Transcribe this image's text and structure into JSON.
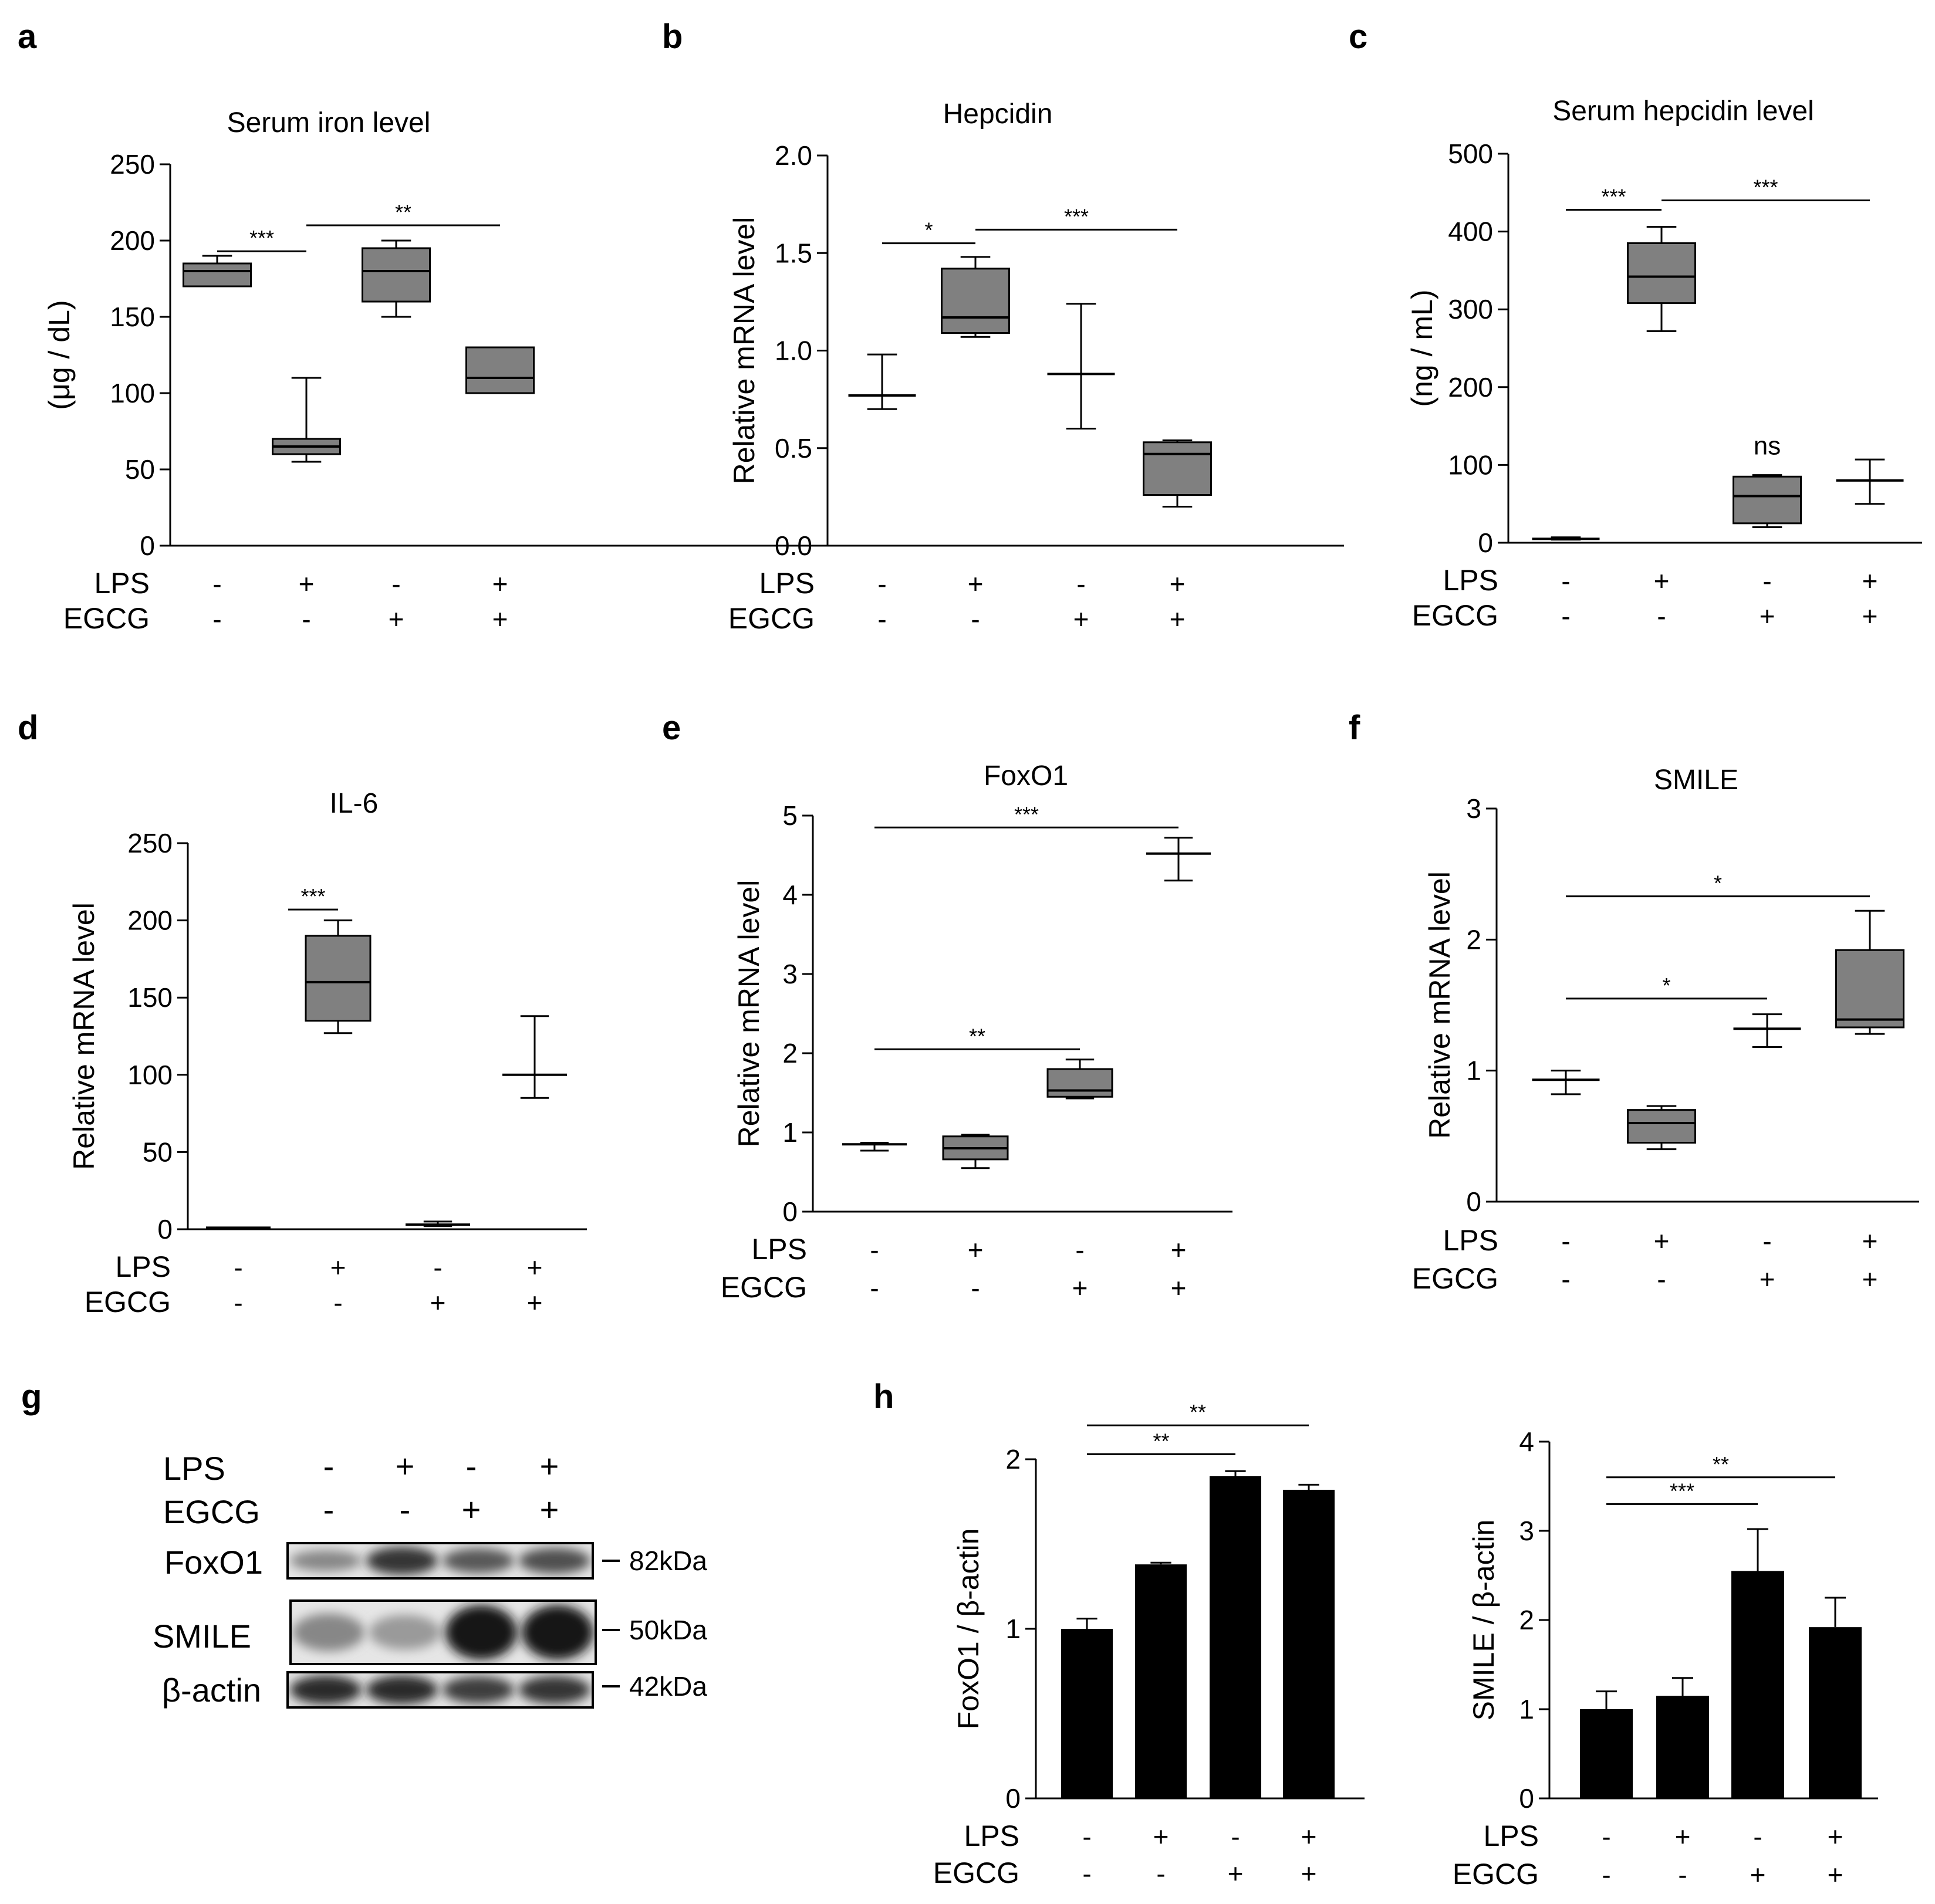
{
  "conditions": {
    "row_labels": [
      "LPS",
      "EGCG"
    ],
    "lps": [
      "-",
      "+",
      "-",
      "+"
    ],
    "egcg": [
      "-",
      "-",
      "+",
      "+"
    ]
  },
  "chart_data": [
    {
      "panel": "a",
      "type": "box",
      "title": "Serum iron level",
      "ylabel": "(μg / dL)",
      "ylim": [
        0,
        250
      ],
      "yticks": [
        0,
        50,
        100,
        150,
        200,
        250
      ],
      "box_color": "#808080",
      "groups": [
        {
          "min": 170,
          "q1": 170,
          "median": 180,
          "q3": 185,
          "max": 190
        },
        {
          "min": 55,
          "q1": 60,
          "median": 65,
          "q3": 70,
          "max": 110
        },
        {
          "min": 150,
          "q1": 160,
          "median": 180,
          "q3": 195,
          "max": 200
        },
        {
          "min": 100,
          "q1": 100,
          "median": 110,
          "q3": 130,
          "max": 130
        }
      ],
      "significance": [
        {
          "from": 0,
          "to": 1,
          "label": "***",
          "y": 193
        },
        {
          "from": 1,
          "to": 3,
          "label": "**",
          "y": 210
        }
      ]
    },
    {
      "panel": "b",
      "type": "box",
      "title": "Hepcidin",
      "ylabel": "Relative mRNA level",
      "ylim": [
        0,
        2.0
      ],
      "yticks": [
        "0.0",
        "0.5",
        "1.0",
        "1.5",
        "2.0"
      ],
      "box_color": "#808080",
      "groups": [
        {
          "min": 0.7,
          "median": 0.77,
          "max": 0.98
        },
        {
          "min": 1.07,
          "q1": 1.09,
          "median": 1.17,
          "q3": 1.42,
          "max": 1.48
        },
        {
          "min": 0.6,
          "median": 0.88,
          "max": 1.24
        },
        {
          "min": 0.2,
          "q1": 0.26,
          "median": 0.47,
          "q3": 0.53,
          "max": 0.54
        }
      ],
      "significance": [
        {
          "from": 0,
          "to": 1,
          "label": "*",
          "y": 1.55
        },
        {
          "from": 1,
          "to": 3,
          "label": "***",
          "y": 1.62
        }
      ]
    },
    {
      "panel": "c",
      "type": "box",
      "title": "Serum hepcidin level",
      "ylabel": "(ng / mL)",
      "ylim": [
        0,
        500
      ],
      "yticks": [
        0,
        100,
        200,
        300,
        400,
        500
      ],
      "box_color": "#808080",
      "groups": [
        {
          "min": 4,
          "median": 5,
          "max": 7
        },
        {
          "min": 272,
          "q1": 308,
          "median": 342,
          "q3": 385,
          "max": 406
        },
        {
          "min": 20,
          "q1": 25,
          "median": 60,
          "q3": 85,
          "max": 87
        },
        {
          "min": 50,
          "median": 80,
          "max": 107
        }
      ],
      "significance": [
        {
          "from": 0,
          "to": 1,
          "label": "***",
          "y": 428
        },
        {
          "from": 1,
          "to": 3,
          "label": "***",
          "y": 440
        }
      ],
      "annotations": [
        {
          "group": 2,
          "label": "ns",
          "y": 100
        }
      ]
    },
    {
      "panel": "d",
      "type": "box",
      "title": "IL-6",
      "ylabel": "Relative mRNA level",
      "ylim": [
        0,
        250
      ],
      "yticks": [
        0,
        50,
        100,
        150,
        200,
        250
      ],
      "box_color": "#808080",
      "groups": [
        {
          "min": 1,
          "median": 1,
          "max": 1
        },
        {
          "min": 127,
          "q1": 135,
          "median": 160,
          "q3": 190,
          "max": 200
        },
        {
          "min": 2,
          "median": 3,
          "max": 5
        },
        {
          "min": 85,
          "median": 100,
          "max": 138
        }
      ],
      "significance": [
        {
          "from": 0,
          "to": 1,
          "label": "***",
          "y": 207,
          "x0": 0.5
        }
      ]
    },
    {
      "panel": "e",
      "type": "box",
      "title": "FoxO1",
      "ylabel": "Relative mRNA level",
      "ylim": [
        0,
        5
      ],
      "yticks": [
        0,
        1,
        2,
        3,
        4,
        5
      ],
      "box_color": "#808080",
      "groups": [
        {
          "min": 0.77,
          "median": 0.85,
          "max": 0.87
        },
        {
          "min": 0.55,
          "q1": 0.66,
          "median": 0.8,
          "q3": 0.95,
          "max": 0.97
        },
        {
          "min": 1.43,
          "q1": 1.45,
          "median": 1.53,
          "q3": 1.8,
          "max": 1.92
        },
        {
          "min": 4.18,
          "median": 4.52,
          "max": 4.72
        }
      ],
      "significance": [
        {
          "from": 0,
          "to": 3,
          "label": "***",
          "y": 4.85
        },
        {
          "from": 0,
          "to": 2,
          "label": "**",
          "y": 2.05
        }
      ]
    },
    {
      "panel": "f",
      "type": "box",
      "title": "SMILE",
      "ylabel": "Relative mRNA level",
      "ylim": [
        0,
        3
      ],
      "yticks": [
        0,
        1,
        2,
        3
      ],
      "box_color": "#808080",
      "groups": [
        {
          "min": 0.82,
          "median": 0.93,
          "max": 1.0
        },
        {
          "min": 0.4,
          "q1": 0.45,
          "median": 0.6,
          "q3": 0.7,
          "max": 0.73
        },
        {
          "min": 1.18,
          "median": 1.32,
          "max": 1.43
        },
        {
          "min": 1.28,
          "q1": 1.33,
          "median": 1.39,
          "q3": 1.92,
          "max": 2.22
        }
      ],
      "significance": [
        {
          "from": 0,
          "to": 3,
          "label": "*",
          "y": 2.33
        },
        {
          "from": 0,
          "to": 2,
          "label": "*",
          "y": 1.55
        }
      ]
    },
    {
      "panel": "h1",
      "type": "bar",
      "ylabel": "FoxO1 / β-actin",
      "ylim": [
        0,
        2
      ],
      "yticks": [
        0,
        1,
        2
      ],
      "values": [
        1.0,
        1.38,
        1.9,
        1.82
      ],
      "errors": [
        0.06,
        0.01,
        0.03,
        0.03
      ],
      "significance": [
        {
          "from": 0,
          "to": 2,
          "label": "**",
          "y": 2.03
        },
        {
          "from": 0,
          "to": 3,
          "label": "**",
          "y": 2.2
        }
      ]
    },
    {
      "panel": "h2",
      "type": "bar",
      "ylabel": "SMILE / β-actin",
      "ylim": [
        0,
        4
      ],
      "yticks": [
        0,
        1,
        2,
        3,
        4
      ],
      "values": [
        1.0,
        1.15,
        2.55,
        1.92
      ],
      "errors": [
        0.2,
        0.2,
        0.47,
        0.33
      ],
      "significance": [
        {
          "from": 0,
          "to": 2,
          "label": "***",
          "y": 3.3
        },
        {
          "from": 0,
          "to": 3,
          "label": "**",
          "y": 3.6
        }
      ]
    }
  ],
  "western_blot": {
    "panel": "g",
    "rows": [
      {
        "name": "FoxO1",
        "kda": "82kDa",
        "intensity": [
          0.35,
          0.8,
          0.6,
          0.65
        ]
      },
      {
        "name": "SMILE",
        "kda": "50kDa",
        "intensity": [
          0.35,
          0.25,
          0.95,
          0.95
        ]
      },
      {
        "name": "β-actin",
        "kda": "42kDa",
        "intensity": [
          0.85,
          0.85,
          0.75,
          0.8
        ]
      }
    ]
  }
}
